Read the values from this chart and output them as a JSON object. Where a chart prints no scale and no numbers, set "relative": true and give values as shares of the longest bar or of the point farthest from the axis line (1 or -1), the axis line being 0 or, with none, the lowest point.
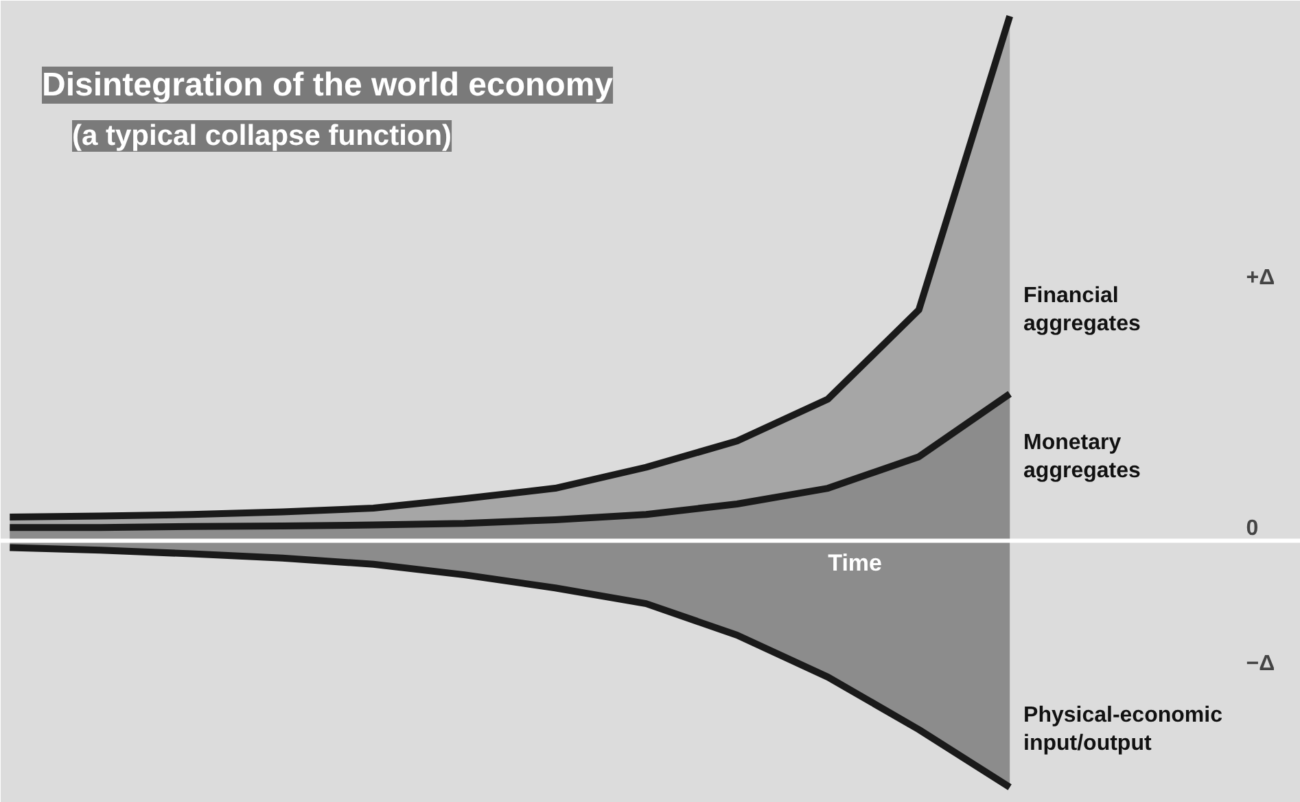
{
  "chart_data": {
    "type": "area",
    "title": "Disintegration of the world economy",
    "subtitle": "(a typical collapse function)",
    "xlabel": "Time",
    "relative": true,
    "categories": [
      null,
      null,
      null,
      null,
      null,
      null,
      null,
      null,
      null,
      null,
      null,
      null
    ],
    "series": [
      {
        "name": "Financial aggregates",
        "color": "#a6a6a6",
        "values": [
          0.045,
          0.047,
          0.05,
          0.055,
          0.062,
          0.08,
          0.1,
          0.14,
          0.19,
          0.27,
          0.44,
          1.0
        ]
      },
      {
        "name": "Monetary aggregates",
        "color": "#8c8c8c",
        "values": [
          0.025,
          0.025,
          0.027,
          0.028,
          0.03,
          0.033,
          0.04,
          0.05,
          0.07,
          0.1,
          0.16,
          0.28
        ]
      },
      {
        "name": "Physical-economic input/output",
        "color": "#8c8c8c",
        "values": [
          -0.013,
          -0.018,
          -0.025,
          -0.033,
          -0.045,
          -0.065,
          -0.09,
          -0.12,
          -0.18,
          -0.26,
          -0.36,
          -0.47
        ]
      }
    ],
    "annotations": [
      "+Δ",
      "0",
      "−Δ"
    ]
  }
}
